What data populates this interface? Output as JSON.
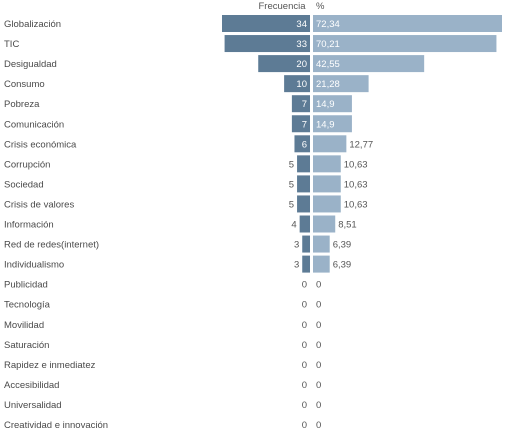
{
  "chart_data": {
    "type": "bar",
    "column_headers": [
      "Frecuencia",
      "%"
    ],
    "categories": [
      "Globalización",
      "TIC",
      "Desigualdad",
      "Consumo",
      "Pobreza",
      "Comunicación",
      "Crisis económica",
      "Corrupción",
      "Sociedad",
      "Crisis de valores",
      "Información",
      "Red de redes(internet)",
      "Individualismo",
      "Publicidad",
      "Tecnología",
      "Movilidad",
      "Saturación",
      "Rapidez e inmediatez",
      "Accesibilidad",
      "Universalidad",
      "Creatividad e innovación"
    ],
    "series": [
      {
        "values": [
          34,
          33,
          20,
          10,
          7,
          7,
          6,
          5,
          5,
          5,
          4,
          3,
          3,
          0,
          0,
          0,
          0,
          0,
          0,
          0,
          0
        ],
        "labels": [
          "34",
          "33",
          "20",
          "10",
          "7",
          "7",
          "6",
          "5",
          "5",
          "5",
          "4",
          "3",
          "3",
          "0",
          "0",
          "0",
          "0",
          "0",
          "0",
          "0",
          "0"
        ],
        "color": "#5d7b95"
      },
      {
        "values": [
          72.34,
          70.21,
          42.55,
          21.28,
          14.9,
          14.9,
          12.77,
          10.63,
          10.63,
          10.63,
          8.51,
          6.39,
          6.39,
          0,
          0,
          0,
          0,
          0,
          0,
          0,
          0
        ],
        "labels": [
          "72,34",
          "70,21",
          "42,55",
          "21,28",
          "14,9",
          "14,9",
          "12,77",
          "10,63",
          "10,63",
          "10,63",
          "8,51",
          "6,39",
          "6,39",
          "0",
          "0",
          "0",
          "0",
          "0",
          "0",
          "0",
          "0"
        ],
        "color": "#9ab2c8"
      }
    ]
  }
}
